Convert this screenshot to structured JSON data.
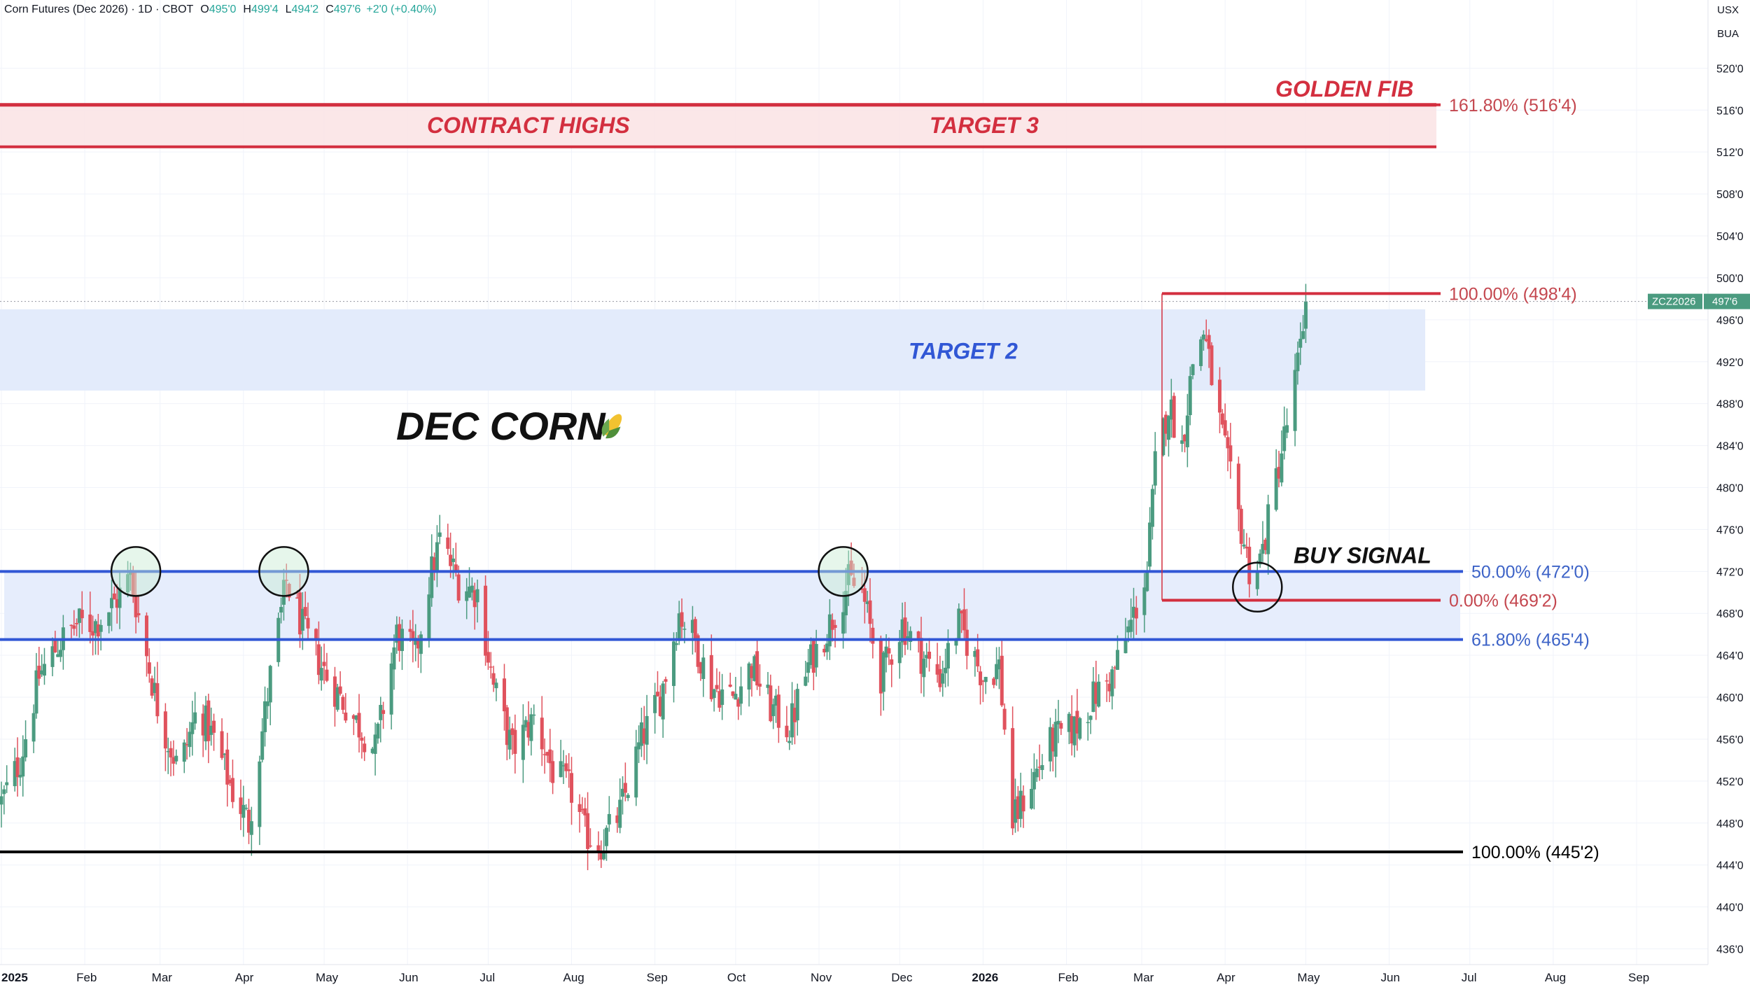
{
  "header": {
    "symbol_info": "Corn Futures (Dec 2026) · 1D · CBOT",
    "open_label": "O",
    "open": "495'0",
    "high_label": "H",
    "high": "499'4",
    "low_label": "L",
    "low": "494'2",
    "close_label": "C",
    "close": "497'6",
    "change": "+2'0 (+0.40%)"
  },
  "corner": {
    "currency": "USX",
    "unit": "BUA"
  },
  "chart_data": {
    "type": "candlestick",
    "title": "DEC CORN",
    "title_icon": "corn-emoji",
    "y_unit": "cents per bushel",
    "ylim": [
      434.5,
      526.5
    ],
    "y_ticks": [
      {
        "value": 436,
        "label": "436'0"
      },
      {
        "value": 440,
        "label": "440'0"
      },
      {
        "value": 444,
        "label": "444'0"
      },
      {
        "value": 448,
        "label": "448'0"
      },
      {
        "value": 452,
        "label": "452'0"
      },
      {
        "value": 456,
        "label": "456'0"
      },
      {
        "value": 460,
        "label": "460'0"
      },
      {
        "value": 464,
        "label": "464'0"
      },
      {
        "value": 468,
        "label": "468'0"
      },
      {
        "value": 472,
        "label": "472'0"
      },
      {
        "value": 476,
        "label": "476'0"
      },
      {
        "value": 480,
        "label": "480'0"
      },
      {
        "value": 484,
        "label": "484'0"
      },
      {
        "value": 488,
        "label": "488'0"
      },
      {
        "value": 492,
        "label": "492'0"
      },
      {
        "value": 496,
        "label": "496'0"
      },
      {
        "value": 500,
        "label": "500'0"
      },
      {
        "value": 504,
        "label": "504'0"
      },
      {
        "value": 508,
        "label": "508'0"
      },
      {
        "value": 512,
        "label": "512'0"
      },
      {
        "value": 516,
        "label": "516'0"
      },
      {
        "value": 520,
        "label": "520'0"
      }
    ],
    "x_ticks": [
      {
        "date": "2025-01-01",
        "label": "2025",
        "bold": true
      },
      {
        "date": "2025-02-01",
        "label": "Feb"
      },
      {
        "date": "2025-03-01",
        "label": "Mar"
      },
      {
        "date": "2025-04-01",
        "label": "Apr"
      },
      {
        "date": "2025-05-01",
        "label": "May"
      },
      {
        "date": "2025-06-01",
        "label": "Jun"
      },
      {
        "date": "2025-07-01",
        "label": "Jul"
      },
      {
        "date": "2025-08-01",
        "label": "Aug"
      },
      {
        "date": "2025-09-01",
        "label": "Sep"
      },
      {
        "date": "2025-10-01",
        "label": "Oct"
      },
      {
        "date": "2025-11-01",
        "label": "Nov"
      },
      {
        "date": "2025-12-01",
        "label": "Dec"
      },
      {
        "date": "2026-01-01",
        "label": "2026",
        "bold": true
      },
      {
        "date": "2026-02-01",
        "label": "Feb"
      },
      {
        "date": "2026-03-01",
        "label": "Mar"
      },
      {
        "date": "2026-04-01",
        "label": "Apr"
      },
      {
        "date": "2026-05-01",
        "label": "May"
      },
      {
        "date": "2026-06-01",
        "label": "Jun"
      },
      {
        "date": "2026-07-01",
        "label": "Jul"
      },
      {
        "date": "2026-08-01",
        "label": "Aug"
      },
      {
        "date": "2026-09-01",
        "label": "Sep"
      }
    ],
    "price_path": [
      [
        "2025-01-01",
        450
      ],
      [
        "2025-01-08",
        454
      ],
      [
        "2025-01-15",
        462
      ],
      [
        "2025-01-22",
        465
      ],
      [
        "2025-01-29",
        467
      ],
      [
        "2025-02-05",
        467
      ],
      [
        "2025-02-12",
        469
      ],
      [
        "2025-02-18",
        471.5
      ],
      [
        "2025-02-24",
        464
      ],
      [
        "2025-03-01",
        458
      ],
      [
        "2025-03-08",
        453
      ],
      [
        "2025-03-15",
        459
      ],
      [
        "2025-03-21",
        456
      ],
      [
        "2025-03-28",
        451
      ],
      [
        "2025-04-03",
        448
      ],
      [
        "2025-04-07",
        455
      ],
      [
        "2025-04-11",
        462
      ],
      [
        "2025-04-17",
        471
      ],
      [
        "2025-04-24",
        466
      ],
      [
        "2025-05-02",
        462
      ],
      [
        "2025-05-12",
        458
      ],
      [
        "2025-05-20",
        455
      ],
      [
        "2025-05-28",
        466
      ],
      [
        "2025-06-04",
        464
      ],
      [
        "2025-06-09",
        471
      ],
      [
        "2025-06-13",
        475
      ],
      [
        "2025-06-20",
        471
      ],
      [
        "2025-06-27",
        470
      ],
      [
        "2025-07-03",
        461
      ],
      [
        "2025-07-10",
        455
      ],
      [
        "2025-07-18",
        458
      ],
      [
        "2025-07-25",
        453
      ],
      [
        "2025-08-01",
        451
      ],
      [
        "2025-08-06",
        447
      ],
      [
        "2025-08-12",
        446
      ],
      [
        "2025-08-19",
        449
      ],
      [
        "2025-08-27",
        456
      ],
      [
        "2025-09-03",
        460
      ],
      [
        "2025-09-10",
        468
      ],
      [
        "2025-09-15",
        466
      ],
      [
        "2025-09-22",
        461
      ],
      [
        "2025-09-30",
        460
      ],
      [
        "2025-10-07",
        463
      ],
      [
        "2025-10-14",
        459
      ],
      [
        "2025-10-21",
        457
      ],
      [
        "2025-10-28",
        463
      ],
      [
        "2025-11-05",
        467
      ],
      [
        "2025-11-12",
        471
      ],
      [
        "2025-11-17",
        470
      ],
      [
        "2025-11-24",
        462
      ],
      [
        "2025-12-02",
        467
      ],
      [
        "2025-12-09",
        464
      ],
      [
        "2025-12-16",
        462
      ],
      [
        "2025-12-23",
        467
      ],
      [
        "2026-01-01",
        462
      ],
      [
        "2026-01-07",
        463
      ],
      [
        "2026-01-12",
        448
      ],
      [
        "2026-01-19",
        452
      ],
      [
        "2026-01-27",
        456
      ],
      [
        "2026-02-04",
        457
      ],
      [
        "2026-02-11",
        460
      ],
      [
        "2026-02-18",
        462
      ],
      [
        "2026-02-25",
        467
      ],
      [
        "2026-03-03",
        472
      ],
      [
        "2026-03-06",
        482
      ],
      [
        "2026-03-11",
        488
      ],
      [
        "2026-03-16",
        484
      ],
      [
        "2026-03-20",
        492
      ],
      [
        "2026-03-24",
        495
      ],
      [
        "2026-03-28",
        489
      ],
      [
        "2026-04-02",
        482
      ],
      [
        "2026-04-07",
        476
      ],
      [
        "2026-04-11",
        471
      ],
      [
        "2026-04-15",
        474
      ],
      [
        "2026-04-20",
        481
      ],
      [
        "2026-04-24",
        486
      ],
      [
        "2026-04-29",
        493
      ],
      [
        "2026-05-01",
        497.75
      ]
    ],
    "levels": [
      {
        "name": "contract-highs-line-top",
        "value": 516.5,
        "color": "#d32f3f"
      },
      {
        "name": "contract-highs-line-bottom",
        "value": 512.5,
        "color": "#d32f3f"
      },
      {
        "name": "resistance-upper",
        "value": 472,
        "color": "#3157d5"
      },
      {
        "name": "resistance-lower",
        "value": 465.5,
        "color": "#3157d5"
      },
      {
        "name": "major-low",
        "value": 445.25,
        "color": "#000000"
      }
    ],
    "fib_labels": {
      "golden": "161.80% (516'4)",
      "fib100_red": "100.00% (498'4)",
      "fib0_red": "0.00% (469'2)",
      "fib50_blue": "50.00% (472'0)",
      "fib618_blue": "61.80% (465'4)",
      "fib100_black": "100.00% (445'2)"
    },
    "annotations": {
      "golden_fib": "GOLDEN FIB",
      "contract_highs": "CONTRACT HIGHS",
      "target_3": "TARGET 3",
      "target_2": "TARGET 2",
      "buy_signal": "BUY SIGNAL"
    },
    "last_price": {
      "symbol": "ZCZ2026",
      "value": 497.75,
      "label": "497'6"
    },
    "circled_dates": [
      "2025-02-20",
      "2025-04-16",
      "2025-11-10",
      "2026-04-13"
    ],
    "colors": {
      "up": "#4b9b80",
      "down": "#e0525d",
      "red": "#d32f3f",
      "blue": "#3157d5",
      "blue_text": "#3d63c7"
    }
  }
}
